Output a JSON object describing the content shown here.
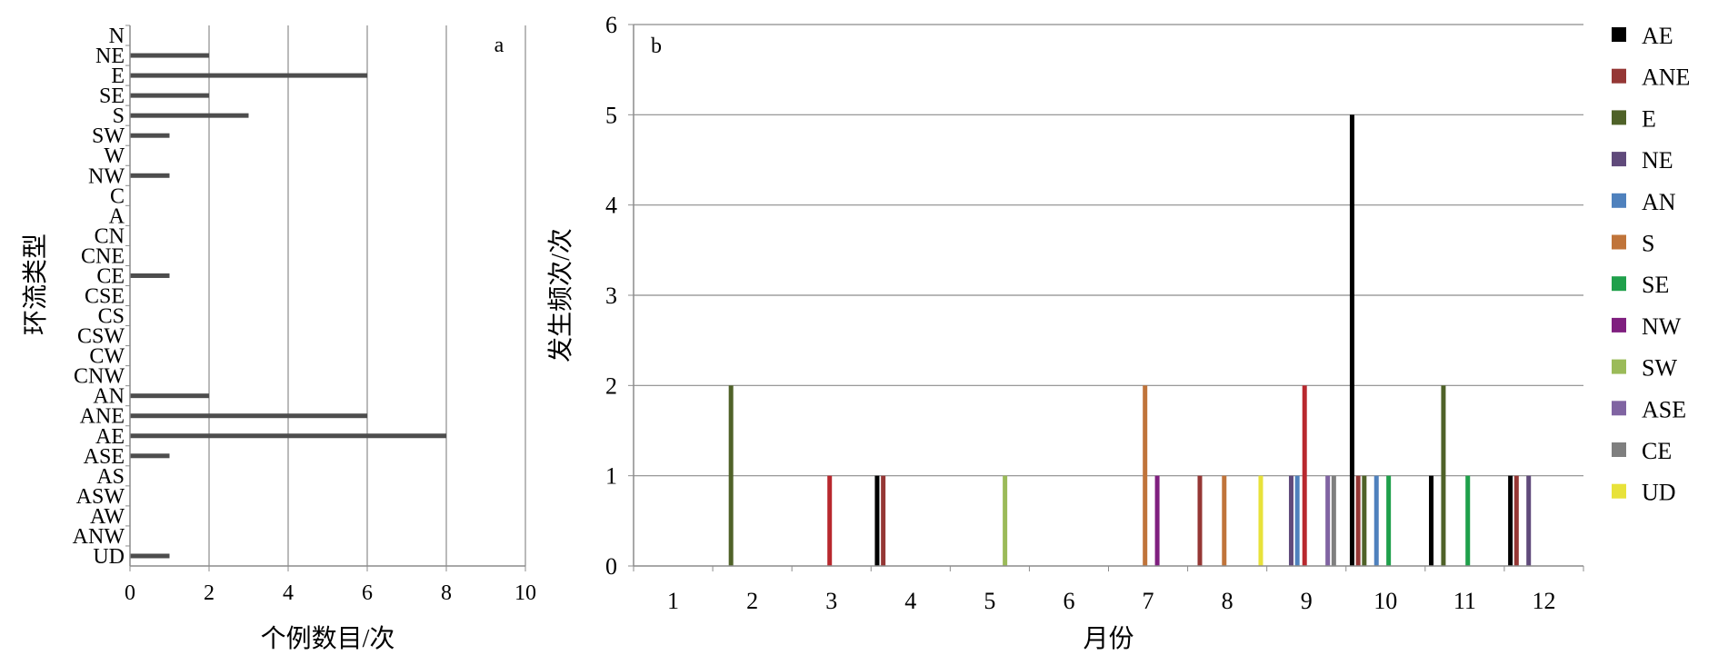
{
  "chart_data": [
    {
      "panel_label": "a",
      "type": "bar",
      "orientation": "horizontal",
      "xlabel": "个例数目/次",
      "ylabel": "环流类型",
      "xlim": [
        0,
        10
      ],
      "xticks": [
        "0",
        "2",
        "4",
        "6",
        "8",
        "10"
      ],
      "categories": [
        "N",
        "NE",
        "E",
        "SE",
        "S",
        "SW",
        "W",
        "NW",
        "C",
        "A",
        "CN",
        "CNE",
        "CE",
        "CSE",
        "CS",
        "CSW",
        "CW",
        "CNW",
        "AN",
        "ANE",
        "AE",
        "ASE",
        "AS",
        "ASW",
        "AW",
        "ANW",
        "UD"
      ],
      "values": [
        0,
        2,
        6,
        2,
        3,
        1,
        0,
        1,
        0,
        0,
        0,
        0,
        1,
        0,
        0,
        0,
        0,
        0,
        2,
        6,
        8,
        1,
        0,
        0,
        0,
        0,
        1
      ],
      "bar_color": "#4d4d4d",
      "grid": "vertical"
    },
    {
      "panel_label": "b",
      "type": "bar",
      "orientation": "vertical",
      "xlabel": "月份",
      "ylabel": "发生频次/次",
      "ylim": [
        0,
        6
      ],
      "yticks": [
        "0",
        "1",
        "2",
        "3",
        "4",
        "5",
        "6"
      ],
      "categories": [
        "1",
        "2",
        "3",
        "4",
        "5",
        "6",
        "7",
        "8",
        "9",
        "10",
        "11",
        "12"
      ],
      "grid": "horizontal",
      "legend_position": "right",
      "series": [
        {
          "name": "AE",
          "color": "#000000",
          "values": [
            0,
            0,
            0,
            1,
            0,
            0,
            0,
            0,
            0,
            5,
            1,
            1
          ]
        },
        {
          "name": "ANE",
          "color": "#953735",
          "values": [
            0,
            0,
            0,
            1,
            0,
            0,
            0,
            1,
            0,
            1,
            0,
            1
          ]
        },
        {
          "name": "E",
          "color": "#4f6228",
          "values": [
            0,
            2,
            0,
            0,
            0,
            0,
            0,
            0,
            0,
            1,
            2,
            0
          ]
        },
        {
          "name": "NE",
          "color": "#604a7b",
          "values": [
            0,
            0,
            0,
            0,
            0,
            0,
            0,
            0,
            1,
            0,
            0,
            1
          ]
        },
        {
          "name": "AN",
          "color": "#4f81bd",
          "values": [
            0,
            0,
            0,
            0,
            0,
            0,
            0,
            0,
            1,
            1,
            0,
            0
          ]
        },
        {
          "name": "S",
          "color": "#c0743a",
          "values": [
            0,
            0,
            0,
            0,
            0,
            0,
            2,
            1,
            0,
            0,
            0,
            0
          ]
        },
        {
          "name": "SE",
          "color": "#1fa04b",
          "values": [
            0,
            0,
            0,
            0,
            0,
            0,
            0,
            0,
            0,
            1,
            1,
            0
          ]
        },
        {
          "name": "NW",
          "color": "#7f1f7f",
          "values": [
            0,
            0,
            0,
            0,
            0,
            0,
            1,
            0,
            0,
            0,
            0,
            0
          ]
        },
        {
          "name": "SW",
          "color": "#9bbb59",
          "values": [
            0,
            0,
            0,
            0,
            1,
            0,
            0,
            0,
            0,
            0,
            0,
            0
          ]
        },
        {
          "name": "ASE",
          "color": "#8064a2",
          "values": [
            0,
            0,
            0,
            0,
            0,
            0,
            0,
            0,
            1,
            0,
            0,
            0
          ]
        },
        {
          "name": "CE",
          "color": "#7f7f7f",
          "values": [
            0,
            0,
            0,
            0,
            0,
            0,
            0,
            0,
            1,
            0,
            0,
            0
          ]
        },
        {
          "name": "UD",
          "color": "#e8e23a",
          "values": [
            0,
            0,
            0,
            0,
            0,
            0,
            0,
            1,
            0,
            0,
            0,
            0
          ]
        }
      ],
      "extra_bars": [
        {
          "month": "3",
          "color": "#b8282e",
          "value": 1
        },
        {
          "month": "9",
          "color": "#b8282e",
          "value": 2
        }
      ]
    }
  ]
}
